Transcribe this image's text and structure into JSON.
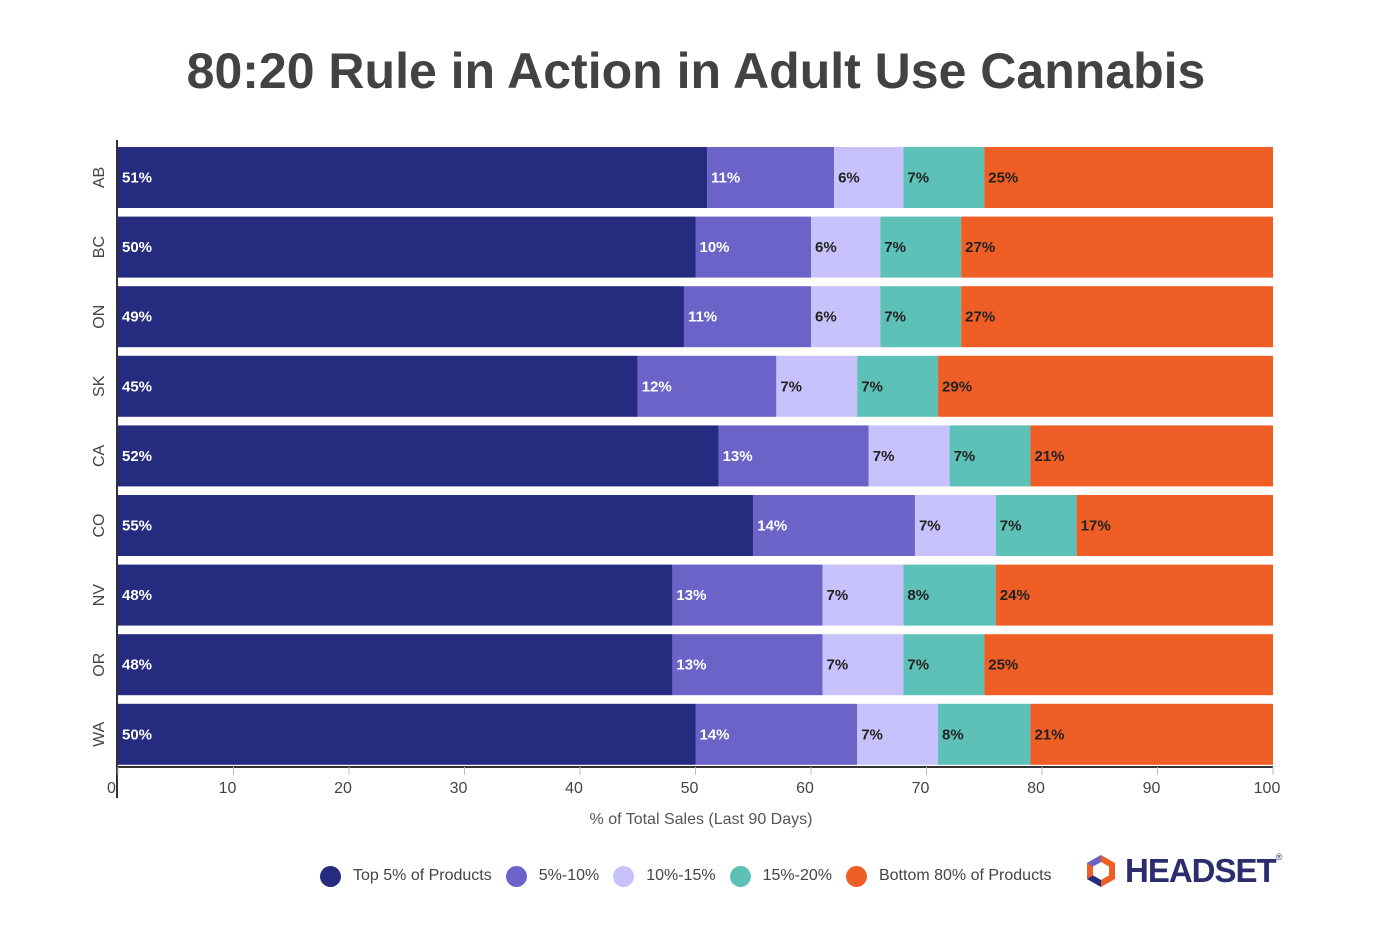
{
  "title": "80:20 Rule in Action in Adult Use Cannabis",
  "colors": {
    "top5": "#252b7e",
    "s5_10": "#6b63c8",
    "s10_15": "#c7c2fb",
    "s15_20": "#5ec1b8",
    "bottom80": "#ef5e25"
  },
  "chart_data": {
    "type": "bar",
    "orientation": "horizontal",
    "stacked": true,
    "title": "80:20 Rule in Action in Adult Use Cannabis",
    "xlabel": "% of Total Sales (Last 90 Days)",
    "ylabel": "",
    "xlim": [
      0,
      100
    ],
    "xticks": [
      0,
      10,
      20,
      30,
      40,
      50,
      60,
      70,
      80,
      90,
      100
    ],
    "categories": [
      "AB",
      "BC",
      "ON",
      "SK",
      "CA",
      "CO",
      "NV",
      "OR",
      "WA"
    ],
    "series": [
      {
        "name": "Top 5% of Products",
        "color_key": "top5",
        "label_color": "#ffffff",
        "values": [
          51,
          50,
          49,
          45,
          52,
          55,
          48,
          48,
          50
        ]
      },
      {
        "name": "5%-10%",
        "color_key": "s5_10",
        "label_color": "#ffffff",
        "values": [
          11,
          10,
          11,
          12,
          13,
          14,
          13,
          13,
          14
        ]
      },
      {
        "name": "10%-15%",
        "color_key": "s10_15",
        "label_color": "#222222",
        "values": [
          6,
          6,
          6,
          7,
          7,
          7,
          7,
          7,
          7
        ]
      },
      {
        "name": "15%-20%",
        "color_key": "s15_20",
        "label_color": "#222222",
        "values": [
          7,
          7,
          7,
          7,
          7,
          7,
          8,
          7,
          8
        ]
      },
      {
        "name": "Bottom 80% of Products",
        "color_key": "bottom80",
        "label_color": "#222222",
        "values": [
          25,
          27,
          27,
          29,
          21,
          17,
          24,
          25,
          21
        ]
      }
    ],
    "legend_position": "bottom"
  },
  "brand": {
    "name": "HEADSET",
    "reg": "®"
  }
}
